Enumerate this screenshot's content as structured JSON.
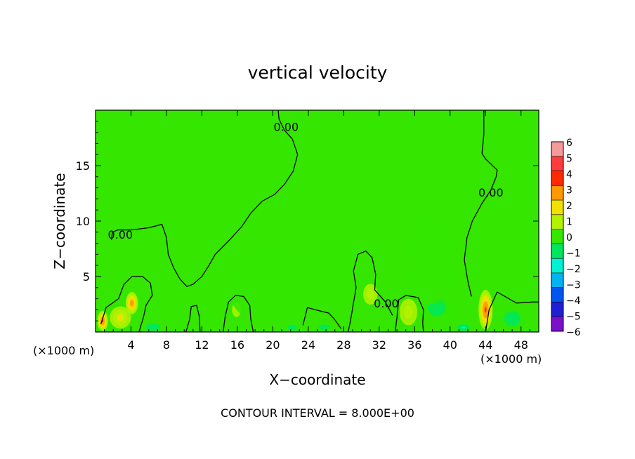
{
  "chart_data": {
    "type": "heatmap",
    "title": "vertical velocity",
    "xlabel": "X−coordinate",
    "ylabel": "Z−coordinate",
    "x_unit_left": "(×1000 m)",
    "x_unit_right": "(×1000 m)",
    "footer": "CONTOUR INTERVAL = 8.000E+00",
    "xlim": [
      0,
      50
    ],
    "ylim": [
      0,
      20
    ],
    "x_ticks": [
      4,
      8,
      12,
      16,
      20,
      24,
      28,
      32,
      36,
      40,
      44,
      48
    ],
    "x_tick_labels": [
      "4",
      "8",
      "12",
      "16",
      "20",
      "24",
      "28",
      "32",
      "36",
      "40",
      "44",
      "48"
    ],
    "y_ticks": [
      5,
      10,
      15
    ],
    "y_tick_labels": [
      "5",
      "10",
      "15"
    ],
    "colorbar": {
      "levels": [
        6,
        5,
        4,
        3,
        2,
        1,
        0,
        -1,
        -2,
        -3,
        -4,
        -5,
        -6
      ],
      "labels": [
        "6",
        "5",
        "4",
        "3",
        "2",
        "1",
        "0",
        "−1",
        "−2",
        "−3",
        "−4",
        "−5",
        "−6"
      ],
      "colors": [
        "#f49a9a",
        "#ff3b3b",
        "#ff2a00",
        "#ff9900",
        "#f2e000",
        "#b4f200",
        "#34e600",
        "#00e65c",
        "#00f2d2",
        "#00b4f2",
        "#0055ee",
        "#1f1fd4",
        "#7a10c8"
      ]
    },
    "contour_label": "0.00",
    "contours": [
      {
        "name": "zero-contour-left",
        "points": [
          [
            1.8,
            8.3
          ],
          [
            1.9,
            9.0
          ],
          [
            2.5,
            9.2
          ],
          [
            4,
            9.2
          ],
          [
            6,
            9.4
          ],
          [
            7.5,
            9.7
          ],
          [
            8,
            8.5
          ],
          [
            8.2,
            7
          ],
          [
            8.8,
            5.8
          ],
          [
            9.5,
            4.8
          ],
          [
            10.3,
            4.1
          ],
          [
            11,
            4.3
          ],
          [
            12,
            5
          ],
          [
            12.8,
            6
          ],
          [
            13.5,
            7
          ],
          [
            15,
            8.2
          ],
          [
            16.5,
            9.5
          ],
          [
            17.5,
            10.7
          ],
          [
            18.8,
            11.8
          ],
          [
            20.2,
            12.4
          ],
          [
            21.3,
            13.3
          ],
          [
            22.3,
            14.5
          ],
          [
            22.8,
            16
          ],
          [
            22.2,
            17.4
          ],
          [
            21.3,
            18.2
          ],
          [
            20.7,
            19.2
          ],
          [
            20.6,
            20
          ]
        ]
      },
      {
        "name": "zero-contour-right",
        "points": [
          [
            43.8,
            20
          ],
          [
            43.8,
            17.8
          ],
          [
            43.6,
            16.1
          ],
          [
            44,
            15.6
          ],
          [
            45.3,
            14.6
          ],
          [
            45.2,
            14
          ],
          [
            44.6,
            12.8
          ],
          [
            43.6,
            11.6
          ],
          [
            42.5,
            10
          ],
          [
            41.9,
            8.5
          ],
          [
            41.6,
            6.5
          ],
          [
            42,
            4.6
          ],
          [
            42.4,
            3.2
          ]
        ]
      },
      {
        "name": "zero-contour-mid",
        "points": [
          [
            33.5,
            1.5
          ],
          [
            32.7,
            2.7
          ],
          [
            31.5,
            3.8
          ],
          [
            31.6,
            5.2
          ],
          [
            31.2,
            6.7
          ],
          [
            30.5,
            7.3
          ],
          [
            29.6,
            7
          ],
          [
            29.1,
            5.5
          ],
          [
            29.4,
            4
          ],
          [
            29.1,
            2.6
          ],
          [
            28.8,
            1.2
          ],
          [
            28.5,
            0
          ]
        ]
      },
      {
        "name": "zero-contour-bump-14",
        "points": [
          [
            14.4,
            0
          ],
          [
            14.6,
            1.3
          ],
          [
            15,
            2.7
          ],
          [
            15.8,
            3.3
          ],
          [
            16.7,
            3.2
          ],
          [
            17.4,
            2.4
          ],
          [
            17.5,
            1.2
          ],
          [
            17.8,
            0
          ]
        ]
      },
      {
        "name": "zero-contour-bump-10",
        "points": [
          [
            10.2,
            0
          ],
          [
            10.6,
            1.1
          ],
          [
            10.8,
            2.3
          ],
          [
            11.4,
            2.4
          ],
          [
            11.7,
            1.4
          ],
          [
            11.8,
            0
          ]
        ]
      },
      {
        "name": "zero-contour-left-bottom",
        "points": [
          [
            0.6,
            0.7
          ],
          [
            1.2,
            2.2
          ],
          [
            2.6,
            3
          ],
          [
            3.2,
            4.3
          ],
          [
            4.1,
            5
          ],
          [
            5.3,
            5
          ],
          [
            6.2,
            4.4
          ],
          [
            6.4,
            3.3
          ],
          [
            5.7,
            2.4
          ],
          [
            5.4,
            1.3
          ],
          [
            4.9,
            0
          ]
        ]
      },
      {
        "name": "zero-contour-bump-35",
        "points": [
          [
            33.8,
            0
          ],
          [
            34,
            1.3
          ],
          [
            34.2,
            2.9
          ],
          [
            35,
            3.3
          ],
          [
            36.4,
            3.1
          ],
          [
            37,
            2
          ],
          [
            36.9,
            0.8
          ],
          [
            37,
            0
          ]
        ]
      },
      {
        "name": "zero-contour-bump-24",
        "points": [
          [
            23.4,
            0.6
          ],
          [
            23.9,
            2.2
          ],
          [
            24.8,
            2
          ],
          [
            26.3,
            1.7
          ],
          [
            27,
            1.1
          ],
          [
            27.7,
            0.3
          ]
        ]
      },
      {
        "name": "zero-contour-right-bottom",
        "points": [
          [
            44,
            0
          ],
          [
            44.4,
            2
          ],
          [
            45.3,
            3.6
          ],
          [
            46.2,
            3.2
          ],
          [
            47.5,
            2.6
          ],
          [
            49.3,
            2.7
          ],
          [
            50,
            2.7
          ]
        ]
      }
    ],
    "contour_label_points": [
      [
        2.8,
        8.8
      ],
      [
        21.5,
        18.5
      ],
      [
        44.6,
        12.6
      ],
      [
        32.8,
        2.6
      ]
    ],
    "blobs": [
      {
        "x": 0.8,
        "y": 1.0,
        "rx": 0.6,
        "ry": 0.9,
        "value": 3.5
      },
      {
        "x": 4.1,
        "y": 2.6,
        "rx": 0.7,
        "ry": 1.0,
        "value": 3.0
      },
      {
        "x": 2.8,
        "y": 1.3,
        "rx": 1.2,
        "ry": 1.0,
        "value": 1.5
      },
      {
        "x": 44.0,
        "y": 2.0,
        "rx": 0.8,
        "ry": 1.8,
        "value": 3.5
      },
      {
        "x": 31.0,
        "y": 3.4,
        "rx": 1.2,
        "ry": 1.4,
        "value": 1.3
      },
      {
        "x": 35.3,
        "y": 1.8,
        "rx": 1.0,
        "ry": 1.2,
        "value": 1.2
      },
      {
        "x": 15.9,
        "y": 2.0,
        "rx": 1.0,
        "ry": 1.3,
        "value": 0.8
      },
      {
        "x": 48.8,
        "y": 6.5,
        "rx": 1.5,
        "ry": 2.2,
        "value": 0.4
      },
      {
        "x": 38.5,
        "y": 2.2,
        "rx": 2.0,
        "ry": 1.6,
        "value": -0.8
      },
      {
        "x": 47.0,
        "y": 1.2,
        "rx": 1.4,
        "ry": 1.0,
        "value": -1.4
      },
      {
        "x": 20.0,
        "y": 4.0,
        "rx": 5.0,
        "ry": 3.5,
        "value": -0.4
      },
      {
        "x": 27.0,
        "y": 5.0,
        "rx": 3.0,
        "ry": 4.0,
        "value": -0.3
      },
      {
        "x": 37.8,
        "y": 6.5,
        "rx": 3.0,
        "ry": 4.0,
        "value": -0.4
      },
      {
        "x": 41.5,
        "y": 0.4,
        "rx": 1.0,
        "ry": 0.4,
        "value": -1.8
      },
      {
        "x": 25.8,
        "y": 0.4,
        "rx": 1.0,
        "ry": 0.4,
        "value": -1.5
      },
      {
        "x": 22.2,
        "y": 0.4,
        "rx": 0.8,
        "ry": 0.4,
        "value": -1.3
      },
      {
        "x": 6.5,
        "y": 0.4,
        "rx": 0.8,
        "ry": 0.4,
        "value": -1.2
      }
    ]
  }
}
